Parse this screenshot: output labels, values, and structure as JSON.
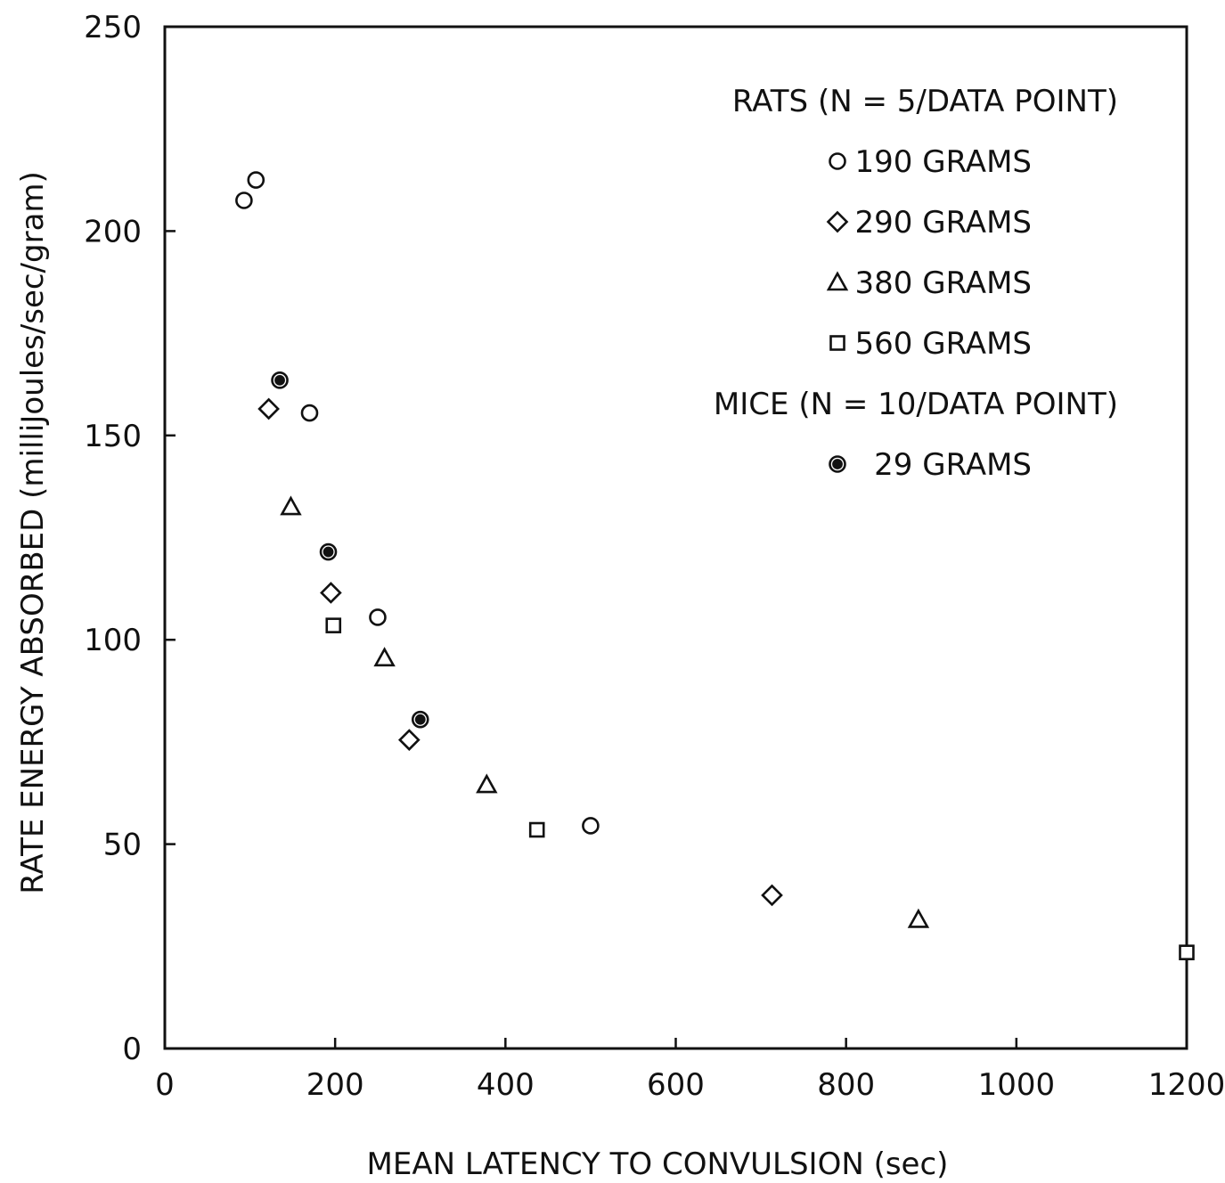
{
  "chart_data": {
    "type": "scatter",
    "xlabel": "MEAN LATENCY TO CONVULSION (sec)",
    "ylabel": "RATE ENERGY ABSORBED (milliJoules/sec/gram)",
    "xlim": [
      0,
      1200
    ],
    "ylim": [
      0,
      250
    ],
    "xticks": [
      "0",
      "200",
      "400",
      "600",
      "800",
      "1000",
      "1200"
    ],
    "yticks": [
      "0",
      "50",
      "100",
      "150",
      "200",
      "250"
    ],
    "grid": false,
    "legend": {
      "placement": "top-right",
      "groups": [
        {
          "heading": "RATS (N = 5/DATA POINT)",
          "entries": [
            {
              "series": 0,
              "label": "190 GRAMS"
            },
            {
              "series": 1,
              "label": "290 GRAMS"
            },
            {
              "series": 2,
              "label": "380 GRAMS"
            },
            {
              "series": 3,
              "label": "560 GRAMS"
            }
          ]
        },
        {
          "heading": "MICE (N = 10/DATA POINT)",
          "entries": [
            {
              "series": 4,
              "label": "29 GRAMS"
            }
          ]
        }
      ]
    },
    "series": [
      {
        "name": "190 GRAMS",
        "marker": "circle-open",
        "points": [
          [
            93,
            207.5
          ],
          [
            107,
            212.5
          ],
          [
            170,
            155.5
          ],
          [
            250,
            105.5
          ],
          [
            500,
            54.5
          ]
        ]
      },
      {
        "name": "290 GRAMS",
        "marker": "diamond-open",
        "points": [
          [
            122,
            156.5
          ],
          [
            195,
            111.5
          ],
          [
            287,
            75.5
          ],
          [
            713,
            37.5
          ]
        ]
      },
      {
        "name": "380 GRAMS",
        "marker": "triangle-open",
        "points": [
          [
            148,
            132.5
          ],
          [
            258,
            95.5
          ],
          [
            378,
            64.5
          ],
          [
            885,
            31.5
          ]
        ]
      },
      {
        "name": "560 GRAMS",
        "marker": "square-open",
        "points": [
          [
            198,
            103.5
          ],
          [
            437,
            53.5
          ],
          [
            1200,
            23.5
          ]
        ]
      },
      {
        "name": "29 GRAMS",
        "marker": "circle-filled",
        "points": [
          [
            135,
            163.5
          ],
          [
            192,
            121.5
          ],
          [
            300,
            80.5
          ]
        ]
      }
    ]
  }
}
